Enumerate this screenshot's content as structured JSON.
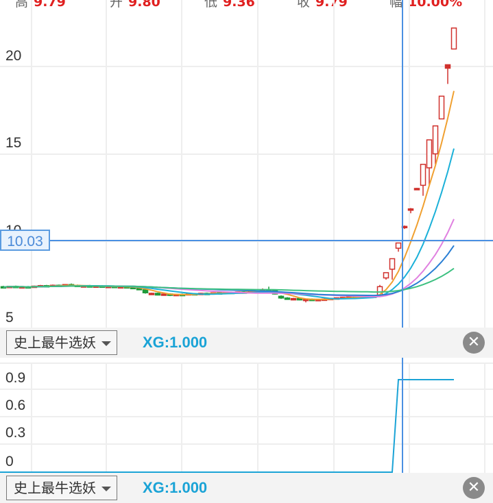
{
  "header": {
    "stats": [
      {
        "label": "高",
        "value": "9.79"
      },
      {
        "label": "开",
        "value": "9.80"
      },
      {
        "label": "低",
        "value": "9.36"
      },
      {
        "label": "收",
        "value": "9.79"
      },
      {
        "label": "幅",
        "value": "10.00%"
      }
    ]
  },
  "crosshair": {
    "price_label": "10.03"
  },
  "indicator_bar": {
    "name": "史上最牛选妖",
    "value_label": "XG:1.000",
    "close_icon": "close-circle-icon"
  },
  "indicator_bar_2": {
    "name": "史上最牛选妖",
    "value_label": "XG:1.000",
    "close_icon": "close-circle-icon"
  },
  "chart_data": [
    {
      "type": "candlestick",
      "y_ticks": [
        "20",
        "15",
        "10",
        "5"
      ],
      "ylim": [
        5,
        23
      ],
      "grid": true,
      "colors": {
        "up": "#d0302c",
        "down": "#1f9a3a",
        "ma": [
          "#f0a030",
          "#1ab0d8",
          "#e080e0",
          "#2a7fd4",
          "#3cc080"
        ]
      },
      "ma_periods": [
        5,
        10,
        20,
        30,
        60
      ],
      "ohlc": [
        [
          7.4,
          7.45,
          7.35,
          7.38
        ],
        [
          7.38,
          7.45,
          7.34,
          7.42
        ],
        [
          7.42,
          7.46,
          7.36,
          7.38
        ],
        [
          7.36,
          7.42,
          7.32,
          7.4
        ],
        [
          7.4,
          7.44,
          7.35,
          7.37
        ],
        [
          7.37,
          7.46,
          7.36,
          7.43
        ],
        [
          7.43,
          7.5,
          7.4,
          7.46
        ],
        [
          7.46,
          7.5,
          7.4,
          7.42
        ],
        [
          7.42,
          7.52,
          7.41,
          7.48
        ],
        [
          7.48,
          7.52,
          7.44,
          7.45
        ],
        [
          7.45,
          7.55,
          7.42,
          7.52
        ],
        [
          7.52,
          7.58,
          7.46,
          7.48
        ],
        [
          7.48,
          7.52,
          7.4,
          7.42
        ],
        [
          7.42,
          7.48,
          7.38,
          7.45
        ],
        [
          7.45,
          7.5,
          7.38,
          7.4
        ],
        [
          7.4,
          7.46,
          7.35,
          7.44
        ],
        [
          7.44,
          7.48,
          7.38,
          7.4
        ],
        [
          7.4,
          7.45,
          7.36,
          7.42
        ],
        [
          7.42,
          7.46,
          7.36,
          7.38
        ],
        [
          7.38,
          7.44,
          7.34,
          7.4
        ],
        [
          7.4,
          7.44,
          7.33,
          7.36
        ],
        [
          7.36,
          7.4,
          7.3,
          7.34
        ],
        [
          7.34,
          7.38,
          7.2,
          7.22
        ],
        [
          7.22,
          7.24,
          7.0,
          7.05
        ],
        [
          6.95,
          7.05,
          6.93,
          7.02
        ],
        [
          7.02,
          7.06,
          6.9,
          6.92
        ],
        [
          6.92,
          7.0,
          6.88,
          6.98
        ],
        [
          6.98,
          7.02,
          6.86,
          6.9
        ],
        [
          6.9,
          6.98,
          6.86,
          6.96
        ],
        [
          6.96,
          7.0,
          6.9,
          6.94
        ],
        [
          6.94,
          7.02,
          6.92,
          7.0
        ],
        [
          7.0,
          7.04,
          6.94,
          6.97
        ],
        [
          6.97,
          7.05,
          6.95,
          7.02
        ],
        [
          7.02,
          7.06,
          6.97,
          7.0
        ],
        [
          7.0,
          7.08,
          6.98,
          7.05
        ],
        [
          7.05,
          7.1,
          7.0,
          7.03
        ],
        [
          7.03,
          7.1,
          7.01,
          7.08
        ],
        [
          7.08,
          7.12,
          7.02,
          7.05
        ],
        [
          7.05,
          7.12,
          7.03,
          7.1
        ],
        [
          7.1,
          7.14,
          7.04,
          7.07
        ],
        [
          7.07,
          7.14,
          7.05,
          7.12
        ],
        [
          7.12,
          7.16,
          7.06,
          7.1
        ],
        [
          7.1,
          7.3,
          7.08,
          7.2
        ],
        [
          7.2,
          7.4,
          7.15,
          7.18
        ],
        [
          7.18,
          7.22,
          6.95,
          6.98
        ],
        [
          6.85,
          6.9,
          6.7,
          6.75
        ],
        [
          6.75,
          6.8,
          6.65,
          6.7
        ],
        [
          6.7,
          6.76,
          6.62,
          6.72
        ],
        [
          6.72,
          6.75,
          6.62,
          6.66
        ],
        [
          6.62,
          6.7,
          6.5,
          6.68
        ],
        [
          6.68,
          6.72,
          6.6,
          6.64
        ],
        [
          6.64,
          6.7,
          6.6,
          6.67
        ],
        [
          6.67,
          6.72,
          6.62,
          6.69
        ],
        [
          6.69,
          6.76,
          6.66,
          6.73
        ],
        [
          6.73,
          6.78,
          6.7,
          6.76
        ],
        [
          6.76,
          6.82,
          6.72,
          6.79
        ],
        [
          6.79,
          6.84,
          6.75,
          6.81
        ],
        [
          6.85,
          6.88,
          6.78,
          6.8
        ],
        [
          6.8,
          6.86,
          6.76,
          6.84
        ],
        [
          6.84,
          6.9,
          6.8,
          6.86
        ],
        [
          6.86,
          6.92,
          6.82,
          6.85
        ],
        [
          6.85,
          7.5,
          6.8,
          7.4
        ],
        [
          7.9,
          8.2,
          7.8,
          8.2
        ],
        [
          8.4,
          9.0,
          7.8,
          9.0
        ],
        [
          9.6,
          9.9,
          9.4,
          9.9
        ],
        [
          10.8,
          10.9,
          10.7,
          10.85
        ],
        [
          11.8,
          11.9,
          11.6,
          11.85
        ],
        [
          13.0,
          13.05,
          12.95,
          13.02
        ],
        [
          13.2,
          14.4,
          12.6,
          14.4
        ],
        [
          14.2,
          15.8,
          13.2,
          15.8
        ],
        [
          15.0,
          16.6,
          14.4,
          16.6
        ],
        [
          17.0,
          18.3,
          17.0,
          18.3
        ],
        [
          19.9,
          20.1,
          19.0,
          20.1
        ],
        [
          21.0,
          22.2,
          21.0,
          22.2
        ]
      ]
    },
    {
      "type": "line",
      "name": "XG",
      "y_ticks": [
        "0.9",
        "0.6",
        "0.3",
        "0"
      ],
      "ylim": [
        0,
        1
      ],
      "values_rule": "0 for candles 1-64, 1 for candles 65-74",
      "switch_index": 64,
      "color": "#1aa3d6"
    }
  ]
}
